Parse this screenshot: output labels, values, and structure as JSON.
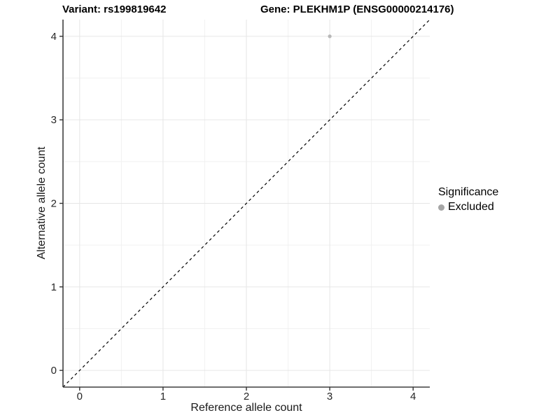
{
  "header": {
    "variant_title": "Variant: rs199819642",
    "gene_title": "Gene: PLEKHM1P (ENSG00000214176)"
  },
  "chart_data": {
    "type": "scatter",
    "xlabel": "Reference allele count",
    "ylabel": "Alternative allele count",
    "xlim": [
      -0.2,
      4.2
    ],
    "ylim": [
      -0.2,
      4.2
    ],
    "x_major_ticks": [
      0,
      1,
      2,
      3,
      4
    ],
    "y_major_ticks": [
      0,
      1,
      2,
      3,
      4
    ],
    "x_minor_ticks": [
      0.5,
      1.5,
      2.5,
      3.5
    ],
    "y_minor_ticks": [
      0.5,
      1.5,
      2.5,
      3.5
    ],
    "grid": "major-and-minor",
    "reference_line": {
      "type": "identity",
      "style": "dashed",
      "x1": -0.2,
      "y1": -0.2,
      "x2": 4.2,
      "y2": 4.2,
      "color": "#000000"
    },
    "series": [
      {
        "name": "Excluded",
        "color": "#b8b8b8",
        "points": [
          {
            "x": 3,
            "y": 4
          }
        ]
      }
    ],
    "legend": {
      "title": "Significance",
      "position": "right",
      "items": [
        {
          "label": "Excluded",
          "color": "#a6a6a6"
        }
      ]
    },
    "colors": {
      "grid_major": "#e6e6e6",
      "grid_minor": "#f1f1f1",
      "axis_line": "#3f3f3f",
      "tick_mark": "#333333",
      "tick_label": "#262626",
      "background": "#ffffff"
    }
  }
}
